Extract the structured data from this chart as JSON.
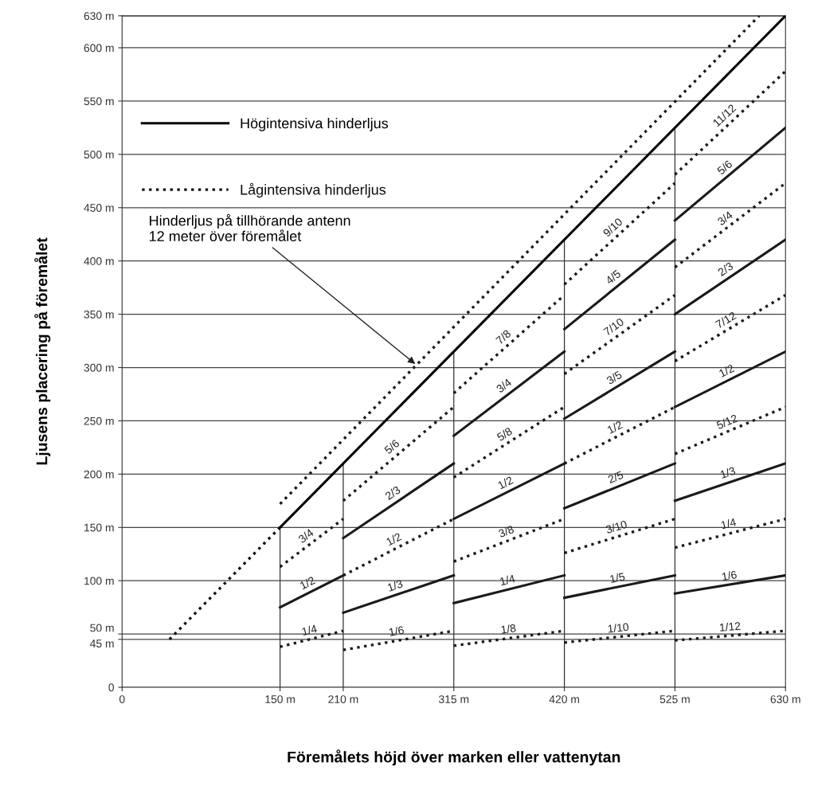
{
  "chart_data": {
    "type": "line",
    "xlabel": "Föremålets höjd över marken eller vattenytan",
    "ylabel": "Ljusens placering på föremålet",
    "xlim": [
      0,
      630
    ],
    "ylim": [
      0,
      630
    ],
    "xticks": [
      0,
      {
        "value": 150,
        "label": "150 m"
      },
      {
        "value": 210,
        "label": "210 m"
      },
      {
        "value": 315,
        "label": "315 m"
      },
      {
        "value": 420,
        "label": "420 m"
      },
      {
        "value": 525,
        "label": "525 m"
      },
      {
        "value": 630,
        "label": "630 m"
      }
    ],
    "yticks": [
      0,
      {
        "value": 45,
        "label": "45 m"
      },
      {
        "value": 50,
        "label": "50 m"
      },
      {
        "value": 100,
        "label": "100 m"
      },
      {
        "value": 150,
        "label": "150 m"
      },
      {
        "value": 200,
        "label": "200 m"
      },
      {
        "value": 250,
        "label": "250 m"
      },
      {
        "value": 300,
        "label": "300 m"
      },
      {
        "value": 350,
        "label": "350 m"
      },
      {
        "value": 400,
        "label": "400 m"
      },
      {
        "value": 450,
        "label": "450 m"
      },
      {
        "value": 500,
        "label": "500 m"
      },
      {
        "value": 550,
        "label": "550 m"
      },
      {
        "value": 600,
        "label": "600 m"
      },
      {
        "value": 630,
        "label": "630 m"
      }
    ],
    "grid": "y",
    "legend": "top left",
    "ref_lines": [
      {
        "axis": "x",
        "value": 150,
        "color": "#333333"
      },
      {
        "axis": "x",
        "value": 210,
        "color": "#333333"
      },
      {
        "axis": "x",
        "value": 315,
        "color": "#333333"
      },
      {
        "axis": "x",
        "value": 420,
        "color": "#333333"
      },
      {
        "axis": "x",
        "value": 525,
        "color": "#333333"
      }
    ],
    "series": [
      {
        "name": "Högintensiva hinderljus",
        "color": "#000000",
        "line_style": "solid",
        "x": [
          150,
          630
        ],
        "values": [
          150,
          630
        ]
      },
      {
        "name": "Lågintensiva hinderljus",
        "color": "#0d0d0d",
        "line_style": "dotted",
        "x": [
          45,
          150
        ],
        "values": [
          45,
          150
        ]
      },
      {
        "color": "#1a1a1a",
        "line_style": "dotted",
        "x": [
          150,
          605
        ],
        "values": [
          172,
          630
        ]
      },
      {
        "color": "#1a1a1a",
        "line_style": "dotted",
        "x": [
          150,
          210
        ],
        "values": [
          38,
          53
        ]
      },
      {
        "color": "#1a1a1a",
        "line_style": "solid",
        "x": [
          150,
          210
        ],
        "values": [
          75,
          105
        ]
      },
      {
        "color": "#1a1a1a",
        "line_style": "dotted",
        "x": [
          150,
          210
        ],
        "values": [
          113,
          158
        ]
      },
      {
        "color": "#1a1a1a",
        "line_style": "dotted",
        "x": [
          210,
          315
        ],
        "values": [
          35,
          53
        ]
      },
      {
        "color": "#1a1a1a",
        "line_style": "solid",
        "x": [
          210,
          315
        ],
        "values": [
          70,
          105
        ]
      },
      {
        "color": "#1a1a1a",
        "line_style": "dotted",
        "x": [
          210,
          315
        ],
        "values": [
          105,
          158
        ]
      },
      {
        "color": "#1a1a1a",
        "line_style": "solid",
        "x": [
          210,
          315
        ],
        "values": [
          140,
          210
        ]
      },
      {
        "color": "#1a1a1a",
        "line_style": "dotted",
        "x": [
          210,
          315
        ],
        "values": [
          175,
          263
        ]
      },
      {
        "color": "#1a1a1a",
        "line_style": "dotted",
        "x": [
          315,
          420
        ],
        "values": [
          39,
          53
        ]
      },
      {
        "color": "#1a1a1a",
        "line_style": "solid",
        "x": [
          315,
          420
        ],
        "values": [
          79,
          105
        ]
      },
      {
        "color": "#1a1a1a",
        "line_style": "dotted",
        "x": [
          315,
          420
        ],
        "values": [
          118,
          158
        ]
      },
      {
        "color": "#1a1a1a",
        "line_style": "solid",
        "x": [
          315,
          420
        ],
        "values": [
          158,
          210
        ]
      },
      {
        "color": "#1a1a1a",
        "line_style": "dotted",
        "x": [
          315,
          420
        ],
        "values": [
          197,
          263
        ]
      },
      {
        "color": "#1a1a1a",
        "line_style": "solid",
        "x": [
          315,
          420
        ],
        "values": [
          236,
          315
        ]
      },
      {
        "color": "#1a1a1a",
        "line_style": "dotted",
        "x": [
          315,
          420
        ],
        "values": [
          276,
          368
        ]
      },
      {
        "color": "#1a1a1a",
        "line_style": "dotted",
        "x": [
          420,
          525
        ],
        "values": [
          42,
          53
        ]
      },
      {
        "color": "#1a1a1a",
        "line_style": "solid",
        "x": [
          420,
          525
        ],
        "values": [
          84,
          105
        ]
      },
      {
        "color": "#1a1a1a",
        "line_style": "dotted",
        "x": [
          420,
          525
        ],
        "values": [
          126,
          158
        ]
      },
      {
        "color": "#1a1a1a",
        "line_style": "solid",
        "x": [
          420,
          525
        ],
        "values": [
          168,
          210
        ]
      },
      {
        "color": "#1a1a1a",
        "line_style": "dotted",
        "x": [
          420,
          525
        ],
        "values": [
          210,
          263
        ]
      },
      {
        "color": "#1a1a1a",
        "line_style": "solid",
        "x": [
          420,
          525
        ],
        "values": [
          252,
          315
        ]
      },
      {
        "color": "#1a1a1a",
        "line_style": "dotted",
        "x": [
          420,
          525
        ],
        "values": [
          294,
          368
        ]
      },
      {
        "color": "#1a1a1a",
        "line_style": "solid",
        "x": [
          420,
          525
        ],
        "values": [
          336,
          420
        ]
      },
      {
        "color": "#1a1a1a",
        "line_style": "dotted",
        "x": [
          420,
          525
        ],
        "values": [
          378,
          473
        ]
      },
      {
        "color": "#1a1a1a",
        "line_style": "dotted",
        "x": [
          525,
          630
        ],
        "values": [
          44,
          53
        ]
      },
      {
        "color": "#1a1a1a",
        "line_style": "solid",
        "x": [
          525,
          630
        ],
        "values": [
          88,
          105
        ]
      },
      {
        "color": "#1a1a1a",
        "line_style": "dotted",
        "x": [
          525,
          630
        ],
        "values": [
          131,
          158
        ]
      },
      {
        "color": "#1a1a1a",
        "line_style": "solid",
        "x": [
          525,
          630
        ],
        "values": [
          175,
          210
        ]
      },
      {
        "color": "#1a1a1a",
        "line_style": "dotted",
        "x": [
          525,
          630
        ],
        "values": [
          219,
          263
        ]
      },
      {
        "color": "#1a1a1a",
        "line_style": "solid",
        "x": [
          525,
          630
        ],
        "values": [
          263,
          315
        ]
      },
      {
        "color": "#1a1a1a",
        "line_style": "dotted",
        "x": [
          525,
          630
        ],
        "values": [
          306,
          368
        ]
      },
      {
        "color": "#1a1a1a",
        "line_style": "solid",
        "x": [
          525,
          630
        ],
        "values": [
          350,
          420
        ]
      },
      {
        "color": "#1a1a1a",
        "line_style": "dotted",
        "x": [
          525,
          630
        ],
        "values": [
          394,
          473
        ]
      },
      {
        "color": "#1a1a1a",
        "line_style": "solid",
        "x": [
          525,
          630
        ],
        "values": [
          438,
          525
        ]
      },
      {
        "color": "#1a1a1a",
        "line_style": "dotted",
        "x": [
          525,
          630
        ],
        "values": [
          481,
          578
        ]
      }
    ],
    "annotations": [
      {
        "text": "Hinderljus på tillhörande antenn\n12 meter över föremålet",
        "x": 280,
        "y": 302
      },
      {
        "text": "1/4",
        "x": 180,
        "y": 45
      },
      {
        "text": "1/2",
        "x": 180,
        "y": 90
      },
      {
        "text": "3/4",
        "x": 180,
        "y": 135
      },
      {
        "text": "1/6",
        "x": 262,
        "y": 44
      },
      {
        "text": "1/3",
        "x": 262,
        "y": 87
      },
      {
        "text": "1/2",
        "x": 262,
        "y": 131
      },
      {
        "text": "2/3",
        "x": 262,
        "y": 175
      },
      {
        "text": "5/6",
        "x": 262,
        "y": 219
      },
      {
        "text": "1/8",
        "x": 368,
        "y": 46
      },
      {
        "text": "1/4",
        "x": 368,
        "y": 92
      },
      {
        "text": "3/8",
        "x": 368,
        "y": 138
      },
      {
        "text": "1/2",
        "x": 368,
        "y": 184
      },
      {
        "text": "5/8",
        "x": 368,
        "y": 230
      },
      {
        "text": "3/4",
        "x": 368,
        "y": 276
      },
      {
        "text": "7/8",
        "x": 368,
        "y": 322
      },
      {
        "text": "1/10",
        "x": 472,
        "y": 47
      },
      {
        "text": "1/5",
        "x": 472,
        "y": 94
      },
      {
        "text": "3/10",
        "x": 472,
        "y": 142
      },
      {
        "text": "2/5",
        "x": 472,
        "y": 189
      },
      {
        "text": "1/2",
        "x": 472,
        "y": 236
      },
      {
        "text": "3/5",
        "x": 472,
        "y": 283
      },
      {
        "text": "7/10",
        "x": 472,
        "y": 331
      },
      {
        "text": "4/5",
        "x": 472,
        "y": 378
      },
      {
        "text": "9/10",
        "x": 472,
        "y": 425
      },
      {
        "text": "1/12",
        "x": 578,
        "y": 48
      },
      {
        "text": "1/6",
        "x": 578,
        "y": 96
      },
      {
        "text": "1/4",
        "x": 578,
        "y": 145
      },
      {
        "text": "1/3",
        "x": 578,
        "y": 193
      },
      {
        "text": "5/12",
        "x": 578,
        "y": 241
      },
      {
        "text": "1/2",
        "x": 578,
        "y": 289
      },
      {
        "text": "7/12",
        "x": 578,
        "y": 337
      },
      {
        "text": "2/3",
        "x": 578,
        "y": 385
      },
      {
        "text": "3/4",
        "x": 578,
        "y": 433
      },
      {
        "text": "5/6",
        "x": 578,
        "y": 481
      },
      {
        "text": "11/12",
        "x": 578,
        "y": 530
      }
    ]
  }
}
